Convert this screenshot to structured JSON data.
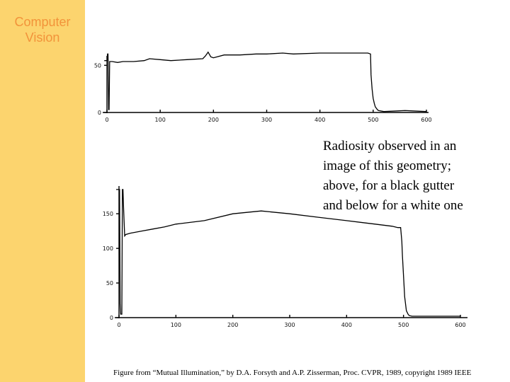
{
  "slide": {
    "course_title": [
      "Computer",
      "Vision"
    ],
    "caption_lines": [
      "Radiosity observed in an",
      "image of this geometry;",
      "above, for a black gutter",
      "and below for a white one"
    ],
    "citation": "Figure from “Mutual Illumination,” by D.A. Forsyth and A.P. Zisserman, Proc. CVPR, 1989, copyright 1989 IEEE",
    "colors": {
      "sidebar": "#fcd46e",
      "title_text": "#f2933a"
    }
  },
  "chart_data": [
    {
      "type": "line",
      "title": "",
      "xlabel": "",
      "ylabel": "",
      "xlim": [
        0,
        600
      ],
      "ylim": [
        0,
        60
      ],
      "xticks": [
        0,
        100,
        200,
        300,
        400,
        500,
        600
      ],
      "xtick_labels": [
        "0",
        "100",
        "200",
        "300",
        "400",
        "500",
        "600"
      ],
      "yticks": [
        0,
        50
      ],
      "ytick_labels": [
        "0",
        "50"
      ],
      "series": [
        {
          "x": [
            -5,
            0,
            1,
            2,
            3,
            4,
            5,
            10,
            20,
            30,
            50,
            70,
            80,
            100,
            120,
            150,
            180,
            185,
            190,
            195,
            200,
            220,
            250,
            280,
            300,
            330,
            350,
            400,
            450,
            480,
            490,
            495,
            496,
            498,
            500,
            502,
            504,
            508,
            510,
            520,
            560,
            600
          ],
          "y": [
            55,
            55,
            62,
            62,
            3,
            3,
            54,
            54,
            53,
            54,
            54,
            55,
            57,
            56,
            55,
            56,
            57,
            60,
            64,
            59,
            58,
            61,
            61,
            62,
            62,
            63,
            62,
            63,
            63,
            63,
            63,
            62,
            40,
            25,
            15,
            10,
            6,
            3,
            2,
            1,
            2,
            1
          ]
        }
      ]
    },
    {
      "type": "line",
      "title": "",
      "xlabel": "",
      "ylabel": "",
      "xlim": [
        0,
        600
      ],
      "ylim": [
        0,
        190
      ],
      "xticks": [
        0,
        100,
        200,
        300,
        400,
        500,
        600
      ],
      "xtick_labels": [
        "0",
        "100",
        "200",
        "300",
        "400",
        "500",
        "600"
      ],
      "yticks": [
        0,
        50,
        100,
        150
      ],
      "ytick_labels": [
        "0",
        "50",
        "100",
        "150"
      ],
      "series": [
        {
          "x": [
            -5,
            0,
            1,
            2,
            3,
            5,
            6,
            7,
            8,
            10,
            12,
            20,
            40,
            60,
            80,
            100,
            150,
            200,
            250,
            300,
            350,
            400,
            450,
            480,
            490,
            495,
            497,
            498,
            500,
            502,
            505,
            508,
            510,
            515,
            600
          ],
          "y": [
            185,
            185,
            185,
            20,
            5,
            5,
            185,
            185,
            160,
            118,
            120,
            122,
            125,
            128,
            131,
            135,
            140,
            150,
            154,
            150,
            145,
            140,
            135,
            132,
            130,
            130,
            110,
            90,
            60,
            30,
            10,
            5,
            3,
            2,
            2
          ]
        }
      ]
    }
  ]
}
